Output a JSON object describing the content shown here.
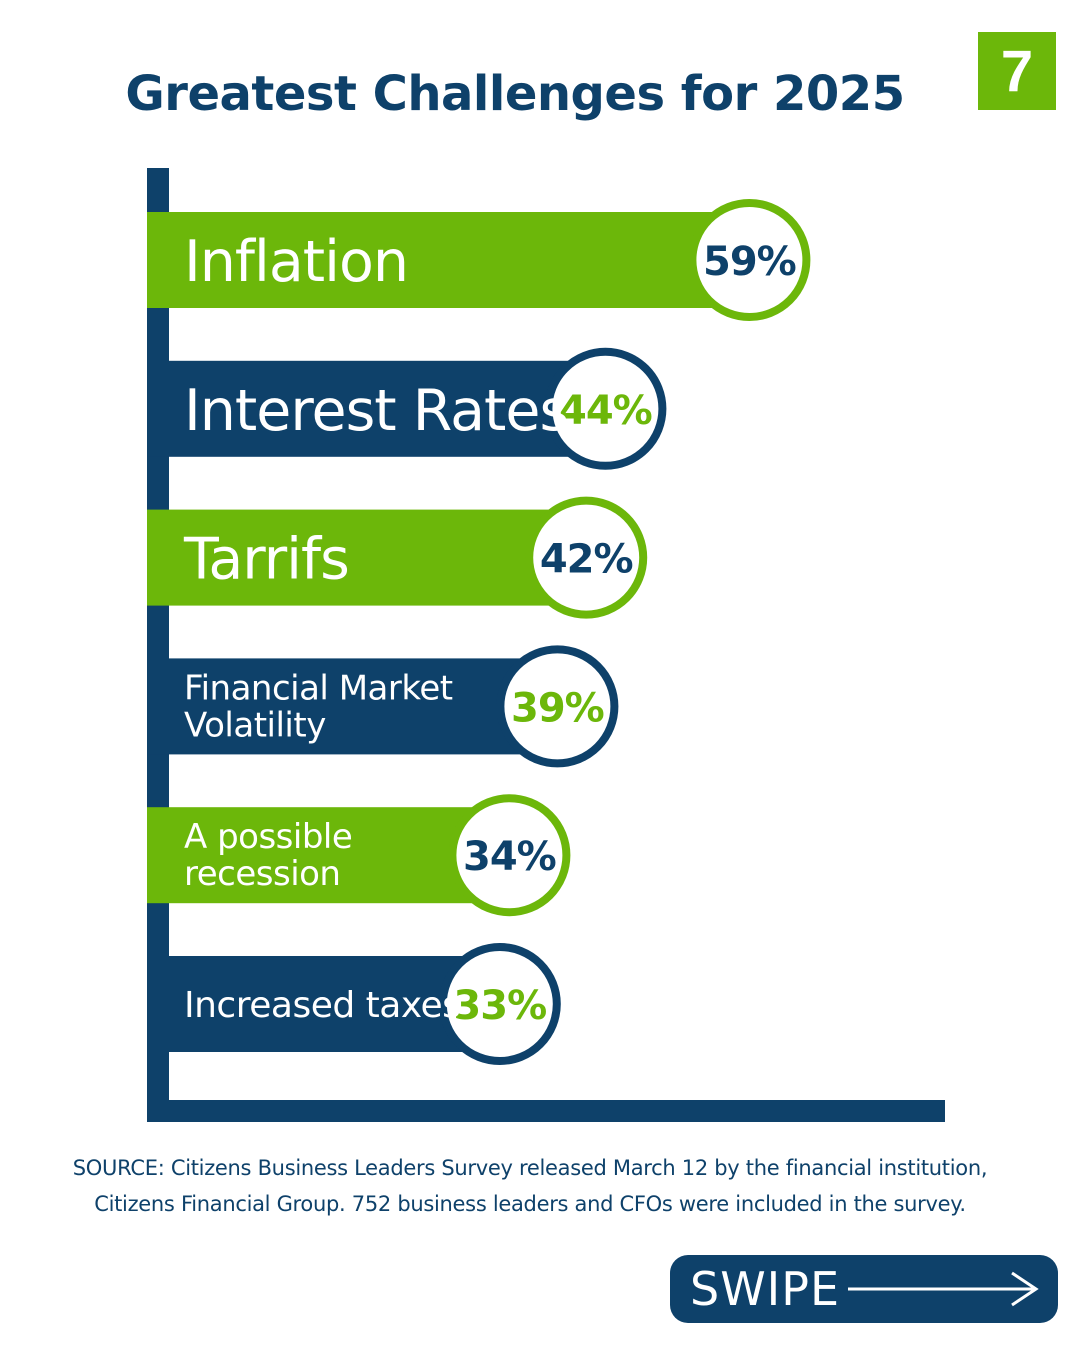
{
  "page_number": "7",
  "colors": {
    "navy": "#0E416A",
    "green": "#6CB70A",
    "white": "#FFFFFF"
  },
  "chart_data": {
    "type": "bar",
    "orientation": "horizontal",
    "title": "Greatest Challenges for 2025",
    "categories": [
      "Inflation",
      "Interest Rates",
      "Tarrifs",
      "Financial Market Volatility",
      "A possible recession",
      "Increased taxes"
    ],
    "category_lines": [
      [
        "Inflation"
      ],
      [
        "Interest Rates"
      ],
      [
        "Tarrifs"
      ],
      [
        "Financial Market",
        "Volatility"
      ],
      [
        "A possible",
        "recession"
      ],
      [
        "Increased taxes"
      ]
    ],
    "values": [
      59,
      44,
      42,
      39,
      34,
      33
    ],
    "value_labels": [
      "59%",
      "44%",
      "42%",
      "39%",
      "34%",
      "33%"
    ],
    "bar_colors": [
      "green",
      "navy",
      "green",
      "navy",
      "green",
      "navy"
    ],
    "unit": "%",
    "grid": false,
    "legend": false
  },
  "source": {
    "line1": "SOURCE: Citizens Business Leaders Survey released March 12 by the financial institution,",
    "line2": "Citizens Financial Group. 752 business leaders and CFOs were included in the survey."
  },
  "swipe": {
    "label": "SWIPE",
    "icon": "arrow-right-icon"
  }
}
